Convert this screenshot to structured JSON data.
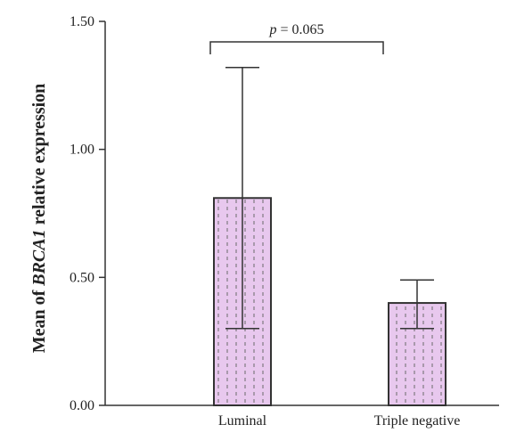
{
  "chart_data": {
    "type": "bar",
    "categories": [
      "Luminal",
      "Triple negative"
    ],
    "values": [
      0.81,
      0.4
    ],
    "error_bars": [
      {
        "lower": 0.3,
        "upper": 1.32
      },
      {
        "lower": 0.3,
        "upper": 0.49
      }
    ],
    "ylim": [
      0,
      1.5
    ],
    "yticks": [
      "0.00",
      "0.50",
      "1.00",
      "1.50"
    ],
    "ylabel": {
      "prefix": "Mean of ",
      "gene": "BRCA1",
      "suffix": " relative expression"
    },
    "annotation": {
      "p_symbol": "p",
      "p_text": " = 0.065",
      "between": [
        "Luminal",
        "Triple negative"
      ]
    },
    "bar_fill": "#e8c8ee",
    "bar_pattern": "dotted vertical lines",
    "bar_stroke": "#333333",
    "grid": false
  }
}
